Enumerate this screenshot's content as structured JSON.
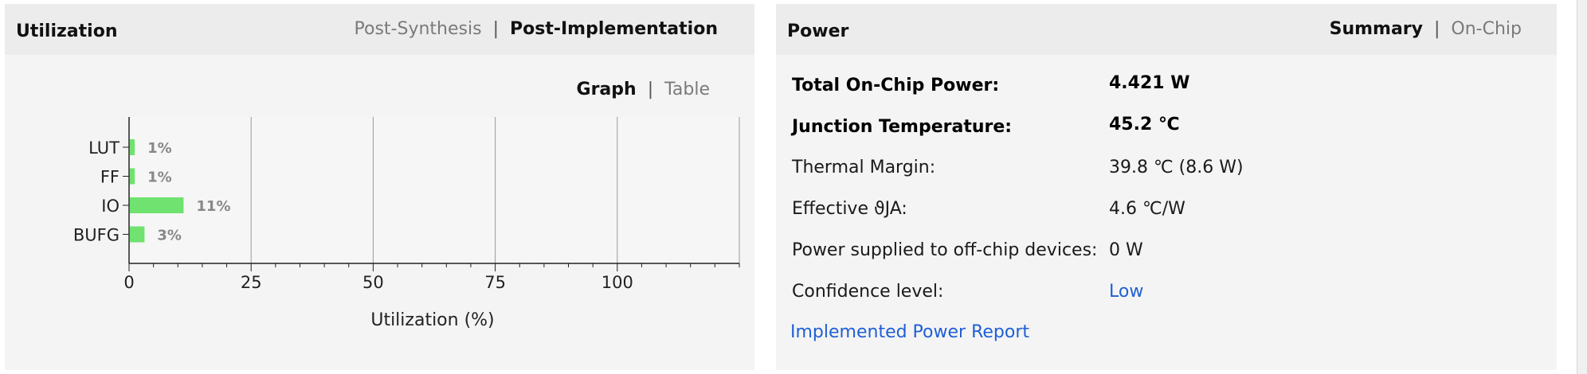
{
  "utilization": {
    "title": "Utilization",
    "tabs": [
      "Post-Synthesis",
      "Post-Implementation"
    ],
    "active_tab": 1,
    "view_tabs": [
      "Graph",
      "Table"
    ],
    "active_view": 0
  },
  "power": {
    "title": "Power",
    "tabs": [
      "Summary",
      "On-Chip"
    ],
    "active_tab": 0,
    "rows": [
      {
        "label": "Total On-Chip Power:",
        "value": "4.421 W",
        "bold": true
      },
      {
        "label": "Junction Temperature:",
        "value": "45.2 ℃",
        "bold": true
      },
      {
        "label": "Thermal Margin:",
        "value": "39.8 ℃ (8.6 W)",
        "bold": false
      },
      {
        "label": "Effective ϑJA:",
        "value": "4.6 ℃/W",
        "bold": false
      },
      {
        "label": "Power supplied to off-chip devices:",
        "value": "0 W",
        "bold": false
      },
      {
        "label": "Confidence level:",
        "value": "Low",
        "bold": false,
        "link": true
      }
    ],
    "report_link": "Implemented Power Report"
  },
  "colors": {
    "bar": "#6fe26f",
    "link": "#1f5fd6",
    "panel_bg": "#f4f4f4",
    "header_bg": "#ececec"
  },
  "chart_data": {
    "type": "bar",
    "orientation": "horizontal",
    "categories": [
      "LUT",
      "FF",
      "IO",
      "BUFG"
    ],
    "values": [
      1,
      1,
      11,
      3
    ],
    "data_labels": [
      "1%",
      "1%",
      "11%",
      "3%"
    ],
    "xlabel": "Utilization (%)",
    "ylabel": "",
    "xticks": [
      0,
      25,
      50,
      75,
      100
    ],
    "xlim": [
      0,
      125
    ],
    "grid": true
  }
}
